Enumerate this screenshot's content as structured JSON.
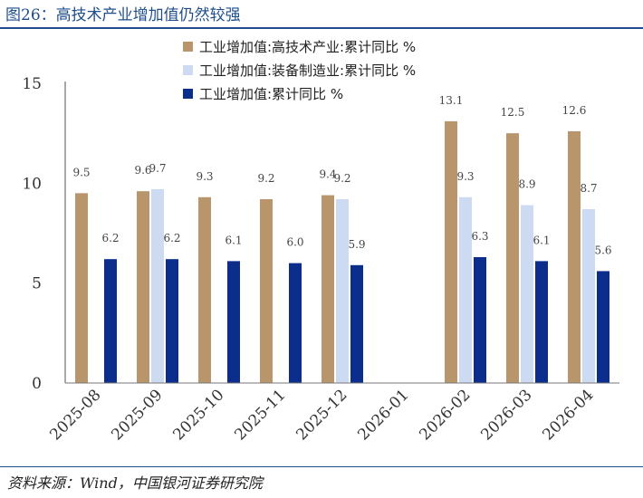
{
  "figure": {
    "title": "图26：高技术产业增加值仍然较强",
    "source": "资料来源：Wind，中国银河证券研究院"
  },
  "chart_data": {
    "type": "bar",
    "categories": [
      "2025-08",
      "2025-09",
      "2025-10",
      "2025-11",
      "2025-12",
      "2026-01",
      "2026-02",
      "2026-03",
      "2026-04"
    ],
    "series": [
      {
        "name": "工业增加值:高技术产业:累计同比 %",
        "color": "#b8956a",
        "values": [
          9.5,
          9.6,
          9.3,
          9.2,
          9.4,
          null,
          13.1,
          12.5,
          12.6
        ]
      },
      {
        "name": "工业增加值:装备制造业:累计同比 %",
        "color": "#ccdaf2",
        "values": [
          null,
          9.7,
          null,
          null,
          9.2,
          null,
          9.3,
          8.9,
          8.7
        ]
      },
      {
        "name": "工业增加值:累计同比 %",
        "color": "#0b2d8c",
        "values": [
          6.2,
          6.2,
          6.1,
          6.0,
          5.9,
          null,
          6.3,
          6.1,
          5.6
        ]
      }
    ],
    "y_ticks": [
      0,
      5,
      10,
      15
    ],
    "ylim": [
      0,
      15
    ],
    "grid": false,
    "legend_position": "top-center"
  }
}
